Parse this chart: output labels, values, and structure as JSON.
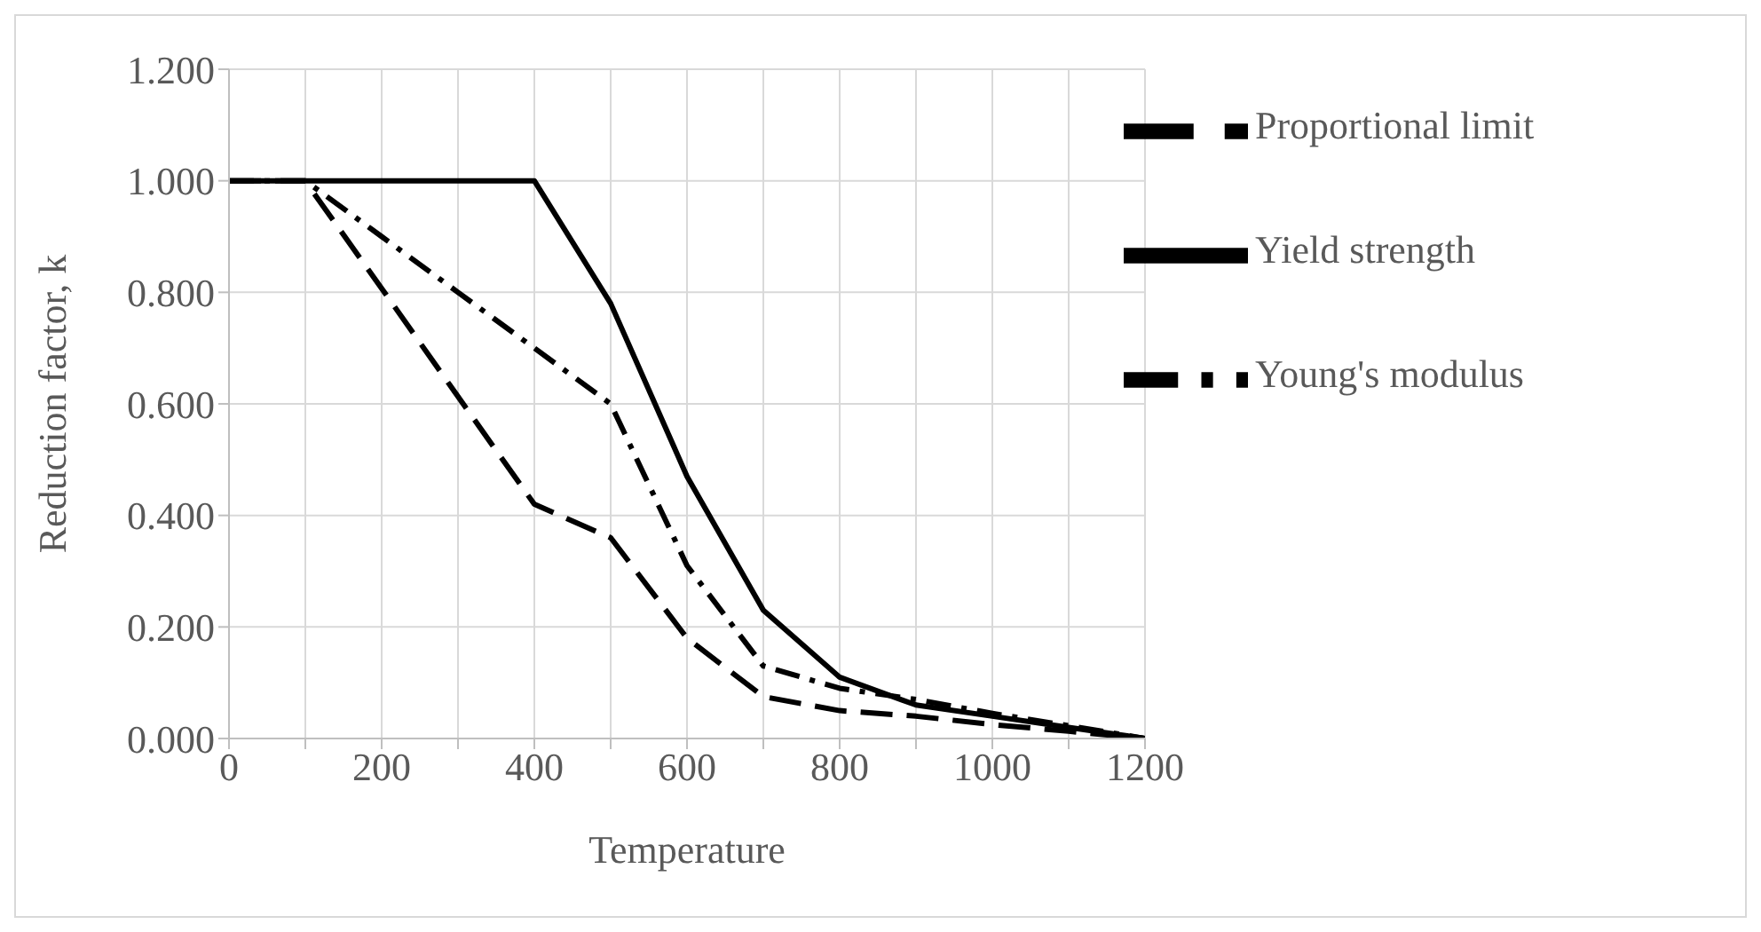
{
  "chart_data": {
    "type": "line",
    "xlabel": "Temperature",
    "ylabel": "Reduction factor, k",
    "xlim": [
      0,
      1200
    ],
    "xticks": [
      0,
      {
        "value": 100,
        "label": null
      },
      200,
      {
        "value": 300,
        "label": null
      },
      400,
      {
        "value": 500,
        "label": null
      },
      600,
      {
        "value": 700,
        "label": null
      },
      800,
      {
        "value": 900,
        "label": null
      },
      1000,
      {
        "value": 1100,
        "label": null
      },
      1200
    ],
    "ylim": [
      0,
      1.2
    ],
    "yticks": [
      {
        "value": 0,
        "label": "0.000"
      },
      {
        "value": 0.2,
        "label": "0.200"
      },
      {
        "value": 0.4,
        "label": "0.400"
      },
      {
        "value": 0.6,
        "label": "0.600"
      },
      {
        "value": 0.8,
        "label": "0.800"
      },
      {
        "value": 1,
        "label": "1.000"
      },
      {
        "value": 1.2,
        "label": "1.200"
      }
    ],
    "grid": true,
    "legend": "top right",
    "marker": "none",
    "series": [
      {
        "name": "Yield strength",
        "color": "#000000",
        "line_style": "solid",
        "x": [
          0,
          100,
          200,
          300,
          400,
          500,
          600,
          700,
          800,
          900,
          1000,
          1100,
          1200
        ],
        "values": [
          1,
          1,
          1,
          1,
          1,
          0.78,
          0.47,
          0.23,
          0.11,
          0.06,
          0.04,
          0.02,
          0
        ]
      },
      {
        "name": "Proportional limit",
        "color": "#000000",
        "line_style": "dashed",
        "x": [
          0,
          100,
          110,
          200,
          300,
          400,
          500,
          600,
          700,
          800,
          900,
          1000,
          1100,
          1200
        ],
        "values": [
          1,
          1,
          0.98,
          0.807,
          0.613,
          0.42,
          0.36,
          0.18,
          0.075,
          0.05,
          0.04,
          0.025,
          0.013,
          0
        ]
      },
      {
        "name": "Young's modulus",
        "color": "#000000",
        "line_style": "dashdot",
        "x": [
          0,
          100,
          200,
          300,
          400,
          500,
          600,
          700,
          800,
          900,
          1000,
          1100,
          1200
        ],
        "values": [
          1,
          1,
          0.9,
          0.8,
          0.7,
          0.6,
          0.31,
          0.13,
          0.09,
          0.07,
          0.045,
          0.023,
          0
        ]
      }
    ]
  }
}
